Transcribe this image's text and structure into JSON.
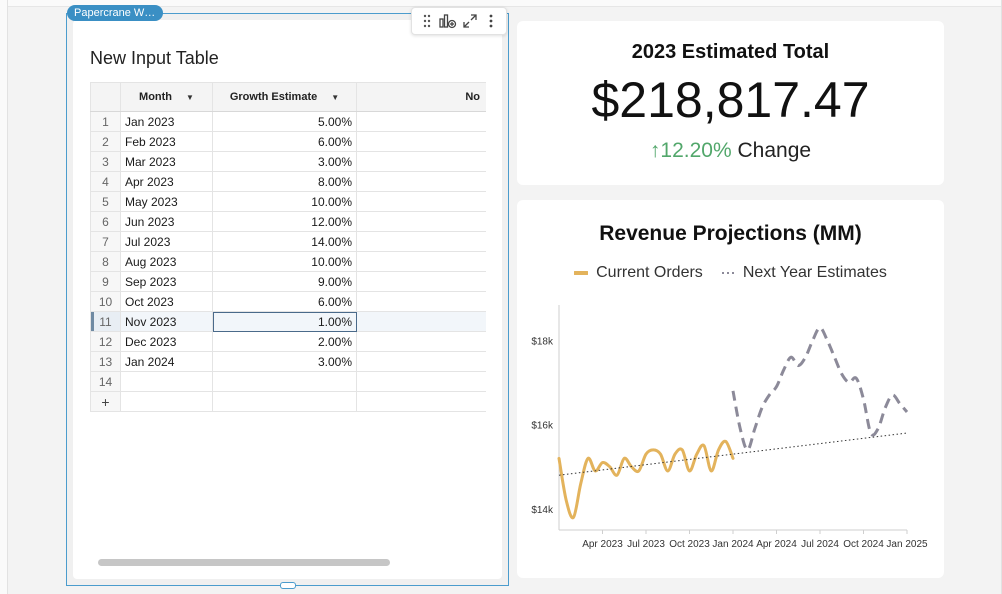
{
  "workbook_element": {
    "tag_label": "Papercrane W…",
    "title": "New Input Table",
    "columns": [
      "Month",
      "Growth Estimate",
      "No"
    ],
    "rows": [
      {
        "num": "1",
        "month": "Jan 2023",
        "growth": "5.00%"
      },
      {
        "num": "2",
        "month": "Feb 2023",
        "growth": "6.00%"
      },
      {
        "num": "3",
        "month": "Mar 2023",
        "growth": "3.00%"
      },
      {
        "num": "4",
        "month": "Apr 2023",
        "growth": "8.00%"
      },
      {
        "num": "5",
        "month": "May 2023",
        "growth": "10.00%"
      },
      {
        "num": "6",
        "month": "Jun 2023",
        "growth": "12.00%"
      },
      {
        "num": "7",
        "month": "Jul 2023",
        "growth": "14.00%"
      },
      {
        "num": "8",
        "month": "Aug 2023",
        "growth": "10.00%"
      },
      {
        "num": "9",
        "month": "Sep 2023",
        "growth": "9.00%"
      },
      {
        "num": "10",
        "month": "Oct 2023",
        "growth": "6.00%"
      },
      {
        "num": "11",
        "month": "Nov 2023",
        "growth": "1.00%"
      },
      {
        "num": "12",
        "month": "Dec 2023",
        "growth": "2.00%"
      },
      {
        "num": "13",
        "month": "Jan 2024",
        "growth": "3.00%"
      },
      {
        "num": "14",
        "month": "",
        "growth": ""
      }
    ],
    "selected_row": "11",
    "add_row_label": "+",
    "toolbar_icons": [
      "drag-handle-icon",
      "add-chart-icon",
      "expand-icon",
      "more-options-icon"
    ]
  },
  "kpi": {
    "title": "2023 Estimated Total",
    "value": "$218,817.47",
    "change_arrow": "↑",
    "change_value": "12.20%",
    "change_label": "Change",
    "change_color": "#52a76b"
  },
  "chart_data": {
    "type": "line",
    "title": "Revenue Projections (MM)",
    "legend_position": "top",
    "x_tick_labels": [
      "Apr 2023",
      "Jul 2023",
      "Oct 2023",
      "Jan 2024",
      "Apr 2024",
      "Jul 2024",
      "Oct 2024",
      "Jan 2025"
    ],
    "y_tick_labels": [
      "$14k",
      "$16k",
      "$18k"
    ],
    "ylim": [
      13.5,
      18.6
    ],
    "xlim": [
      0,
      24
    ],
    "series": [
      {
        "name": "Current Orders",
        "style": "solid",
        "color": "#e3b35c",
        "x": [
          0,
          0.5,
          1,
          1.5,
          2,
          2.5,
          3,
          3.5,
          4,
          4.5,
          5,
          5.5,
          6,
          6.5,
          7,
          7.5,
          8,
          8.5,
          9,
          9.5,
          10,
          10.5,
          11,
          11.5,
          12
        ],
        "y": [
          15.2,
          14.2,
          13.8,
          14.6,
          15.2,
          14.9,
          15.1,
          15.0,
          14.8,
          15.2,
          15.0,
          14.9,
          15.3,
          15.4,
          15.3,
          14.9,
          15.3,
          15.4,
          14.9,
          15.3,
          15.5,
          14.9,
          15.4,
          15.6,
          15.2
        ]
      },
      {
        "name": "Next Year Estimates",
        "style": "dashed",
        "color": "#8c8a99",
        "x": [
          12,
          12.5,
          13,
          13.5,
          14,
          14.5,
          15,
          15.5,
          16,
          16.5,
          17,
          17.5,
          18,
          18.5,
          19,
          19.5,
          20,
          20.5,
          21,
          21.5,
          22,
          22.5,
          23,
          23.5,
          24
        ],
        "y": [
          16.8,
          15.9,
          15.4,
          15.9,
          16.4,
          16.7,
          16.9,
          17.3,
          17.6,
          17.4,
          17.6,
          18.0,
          18.3,
          18.0,
          17.6,
          17.2,
          17.0,
          17.1,
          16.6,
          15.8,
          15.9,
          16.4,
          16.7,
          16.5,
          16.3
        ]
      },
      {
        "name": "trend",
        "style": "dotted",
        "color": "#333333",
        "x": [
          0,
          24
        ],
        "y": [
          14.8,
          15.8
        ]
      }
    ]
  }
}
